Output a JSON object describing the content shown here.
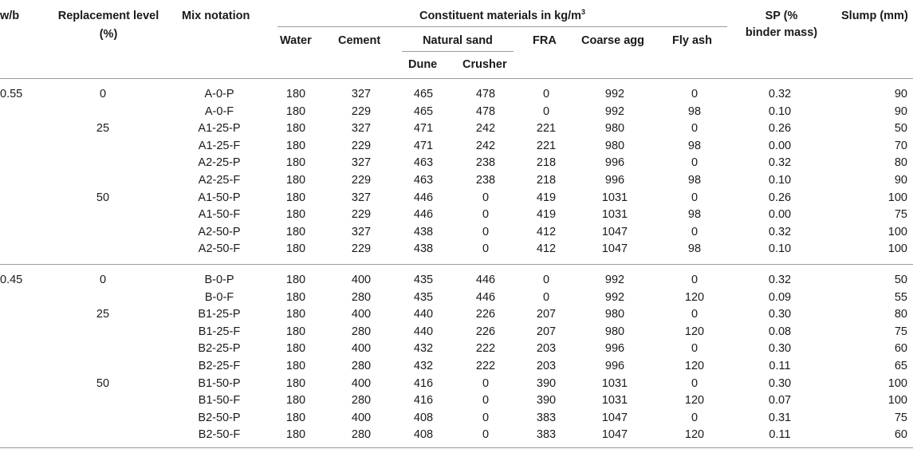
{
  "table": {
    "headers": {
      "wb": "w/b",
      "replacement_line1": "Replacement level",
      "replacement_line2": "(%)",
      "mix": "Mix notation",
      "constituent": "Constituent materials in kg/m",
      "constituent_sup": "3",
      "water": "Water",
      "cement": "Cement",
      "natural_sand": "Natural sand",
      "dune": "Dune",
      "crusher": "Crusher",
      "fra": "FRA",
      "coarse": "Coarse agg",
      "flyash": "Fly ash",
      "sp_line1": "SP (%",
      "sp_line2": "binder mass)",
      "slump": "Slump (mm)"
    },
    "rows": [
      {
        "wb": "0.55",
        "rep": "0",
        "mix": "A-0-P",
        "water": "180",
        "cement": "327",
        "dune": "465",
        "crusher": "478",
        "fra": "0",
        "coarse": "992",
        "flyash": "0",
        "sp": "0.32",
        "slump": "90"
      },
      {
        "wb": "",
        "rep": "",
        "mix": "A-0-F",
        "water": "180",
        "cement": "229",
        "dune": "465",
        "crusher": "478",
        "fra": "0",
        "coarse": "992",
        "flyash": "98",
        "sp": "0.10",
        "slump": "90"
      },
      {
        "wb": "",
        "rep": "25",
        "mix": "A1-25-P",
        "water": "180",
        "cement": "327",
        "dune": "471",
        "crusher": "242",
        "fra": "221",
        "coarse": "980",
        "flyash": "0",
        "sp": "0.26",
        "slump": "50"
      },
      {
        "wb": "",
        "rep": "",
        "mix": "A1-25-F",
        "water": "180",
        "cement": "229",
        "dune": "471",
        "crusher": "242",
        "fra": "221",
        "coarse": "980",
        "flyash": "98",
        "sp": "0.00",
        "slump": "70"
      },
      {
        "wb": "",
        "rep": "",
        "mix": "A2-25-P",
        "water": "180",
        "cement": "327",
        "dune": "463",
        "crusher": "238",
        "fra": "218",
        "coarse": "996",
        "flyash": "0",
        "sp": "0.32",
        "slump": "80"
      },
      {
        "wb": "",
        "rep": "",
        "mix": "A2-25-F",
        "water": "180",
        "cement": "229",
        "dune": "463",
        "crusher": "238",
        "fra": "218",
        "coarse": "996",
        "flyash": "98",
        "sp": "0.10",
        "slump": "90"
      },
      {
        "wb": "",
        "rep": "50",
        "mix": "A1-50-P",
        "water": "180",
        "cement": "327",
        "dune": "446",
        "crusher": "0",
        "fra": "419",
        "coarse": "1031",
        "flyash": "0",
        "sp": "0.26",
        "slump": "100"
      },
      {
        "wb": "",
        "rep": "",
        "mix": "A1-50-F",
        "water": "180",
        "cement": "229",
        "dune": "446",
        "crusher": "0",
        "fra": "419",
        "coarse": "1031",
        "flyash": "98",
        "sp": "0.00",
        "slump": "75"
      },
      {
        "wb": "",
        "rep": "",
        "mix": "A2-50-P",
        "water": "180",
        "cement": "327",
        "dune": "438",
        "crusher": "0",
        "fra": "412",
        "coarse": "1047",
        "flyash": "0",
        "sp": "0.32",
        "slump": "100"
      },
      {
        "wb": "",
        "rep": "",
        "mix": "A2-50-F",
        "water": "180",
        "cement": "229",
        "dune": "438",
        "crusher": "0",
        "fra": "412",
        "coarse": "1047",
        "flyash": "98",
        "sp": "0.10",
        "slump": "100"
      },
      {
        "wb": "0.45",
        "rep": "0",
        "mix": "B-0-P",
        "water": "180",
        "cement": "400",
        "dune": "435",
        "crusher": "446",
        "fra": "0",
        "coarse": "992",
        "flyash": "0",
        "sp": "0.32",
        "slump": "50"
      },
      {
        "wb": "",
        "rep": "",
        "mix": "B-0-F",
        "water": "180",
        "cement": "280",
        "dune": "435",
        "crusher": "446",
        "fra": "0",
        "coarse": "992",
        "flyash": "120",
        "sp": "0.09",
        "slump": "55"
      },
      {
        "wb": "",
        "rep": "25",
        "mix": "B1-25-P",
        "water": "180",
        "cement": "400",
        "dune": "440",
        "crusher": "226",
        "fra": "207",
        "coarse": "980",
        "flyash": "0",
        "sp": "0.30",
        "slump": "80"
      },
      {
        "wb": "",
        "rep": "",
        "mix": "B1-25-F",
        "water": "180",
        "cement": "280",
        "dune": "440",
        "crusher": "226",
        "fra": "207",
        "coarse": "980",
        "flyash": "120",
        "sp": "0.08",
        "slump": "75"
      },
      {
        "wb": "",
        "rep": "",
        "mix": "B2-25-P",
        "water": "180",
        "cement": "400",
        "dune": "432",
        "crusher": "222",
        "fra": "203",
        "coarse": "996",
        "flyash": "0",
        "sp": "0.30",
        "slump": "60"
      },
      {
        "wb": "",
        "rep": "",
        "mix": "B2-25-F",
        "water": "180",
        "cement": "280",
        "dune": "432",
        "crusher": "222",
        "fra": "203",
        "coarse": "996",
        "flyash": "120",
        "sp": "0.11",
        "slump": "65"
      },
      {
        "wb": "",
        "rep": "50",
        "mix": "B1-50-P",
        "water": "180",
        "cement": "400",
        "dune": "416",
        "crusher": "0",
        "fra": "390",
        "coarse": "1031",
        "flyash": "0",
        "sp": "0.30",
        "slump": "100"
      },
      {
        "wb": "",
        "rep": "",
        "mix": "B1-50-F",
        "water": "180",
        "cement": "280",
        "dune": "416",
        "crusher": "0",
        "fra": "390",
        "coarse": "1031",
        "flyash": "120",
        "sp": "0.07",
        "slump": "100"
      },
      {
        "wb": "",
        "rep": "",
        "mix": "B2-50-P",
        "water": "180",
        "cement": "400",
        "dune": "408",
        "crusher": "0",
        "fra": "383",
        "coarse": "1047",
        "flyash": "0",
        "sp": "0.31",
        "slump": "75"
      },
      {
        "wb": "",
        "rep": "",
        "mix": "B2-50-F",
        "water": "180",
        "cement": "280",
        "dune": "408",
        "crusher": "0",
        "fra": "383",
        "coarse": "1047",
        "flyash": "120",
        "sp": "0.11",
        "slump": "60"
      }
    ]
  }
}
